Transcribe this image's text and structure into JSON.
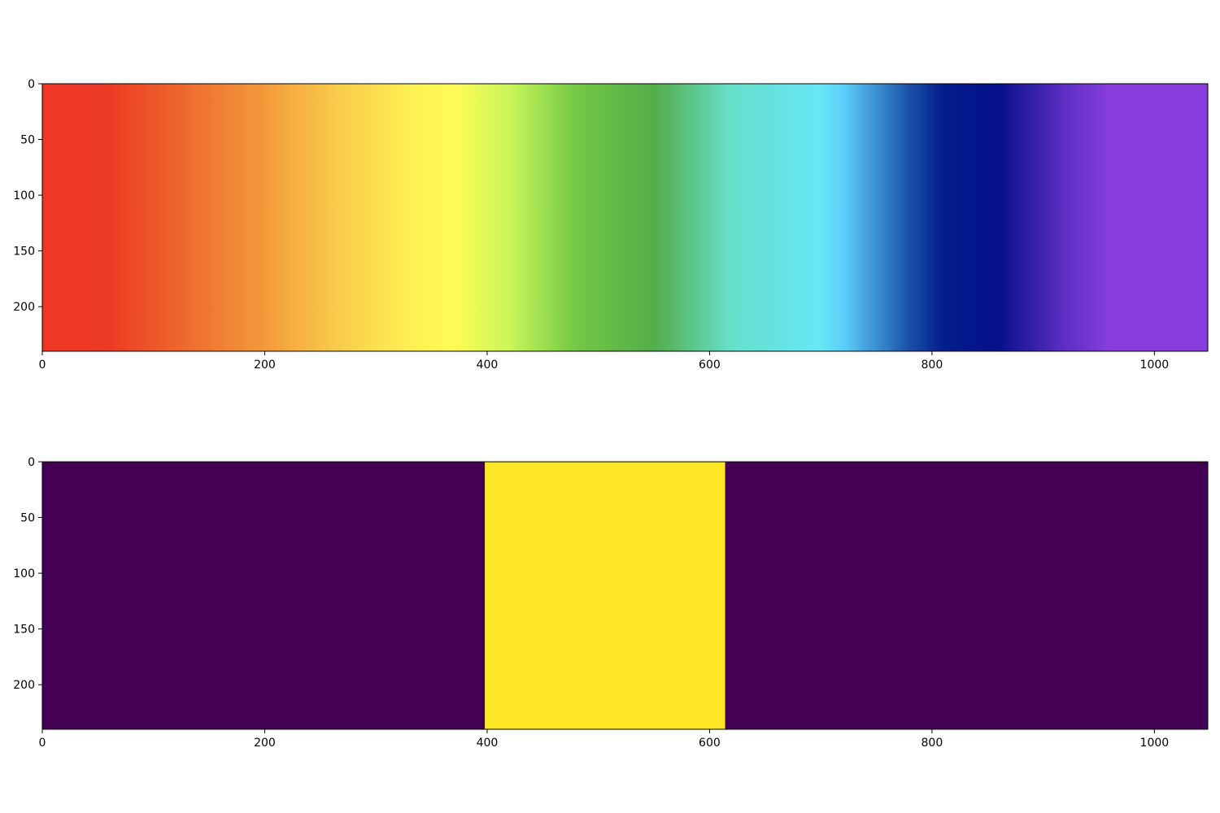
{
  "chart_data": [
    {
      "type": "heatmap",
      "title": "",
      "xlabel": "",
      "ylabel": "",
      "xlim": [
        0,
        1048
      ],
      "ylim": [
        240,
        0
      ],
      "x_ticks": [
        0,
        200,
        400,
        600,
        800,
        1000
      ],
      "y_ticks": [
        0,
        50,
        100,
        150,
        200
      ],
      "x_tick_labels": [
        "0",
        "200",
        "400",
        "600",
        "800",
        "1000"
      ],
      "y_tick_labels": [
        "0",
        "50",
        "100",
        "150",
        "200"
      ],
      "grid": false,
      "legend": "none",
      "gradient_stops": [
        {
          "x": 0,
          "color": "#ee3624"
        },
        {
          "x": 60,
          "color": "#ec3b24"
        },
        {
          "x": 130,
          "color": "#ee6b2e"
        },
        {
          "x": 200,
          "color": "#f39a3a"
        },
        {
          "x": 260,
          "color": "#f8c849"
        },
        {
          "x": 330,
          "color": "#fdf053"
        },
        {
          "x": 370,
          "color": "#fffb56"
        },
        {
          "x": 420,
          "color": "#c9f65a"
        },
        {
          "x": 480,
          "color": "#73c845"
        },
        {
          "x": 550,
          "color": "#53ad4a"
        },
        {
          "x": 620,
          "color": "#66e0cc"
        },
        {
          "x": 700,
          "color": "#67e6f7"
        },
        {
          "x": 720,
          "color": "#5ecffa"
        },
        {
          "x": 780,
          "color": "#1a4fa7"
        },
        {
          "x": 810,
          "color": "#021e8c"
        },
        {
          "x": 860,
          "color": "#06108a"
        },
        {
          "x": 920,
          "color": "#5e2fc4"
        },
        {
          "x": 960,
          "color": "#873ddb"
        },
        {
          "x": 1048,
          "color": "#873ddb"
        }
      ]
    },
    {
      "type": "heatmap",
      "title": "",
      "xlabel": "",
      "ylabel": "",
      "xlim": [
        0,
        1048
      ],
      "ylim": [
        240,
        0
      ],
      "x_ticks": [
        0,
        200,
        400,
        600,
        800,
        1000
      ],
      "y_ticks": [
        0,
        50,
        100,
        150,
        200
      ],
      "x_tick_labels": [
        "0",
        "200",
        "400",
        "600",
        "800",
        "1000"
      ],
      "y_tick_labels": [
        "0",
        "50",
        "100",
        "150",
        "200"
      ],
      "grid": false,
      "legend": "none",
      "segments": [
        {
          "x_start": 0,
          "x_end": 398,
          "value": 0,
          "color": "#440154"
        },
        {
          "x_start": 398,
          "x_end": 614,
          "value": 1,
          "color": "#fde725"
        },
        {
          "x_start": 614,
          "x_end": 1048,
          "value": 0,
          "color": "#440154"
        }
      ]
    }
  ]
}
